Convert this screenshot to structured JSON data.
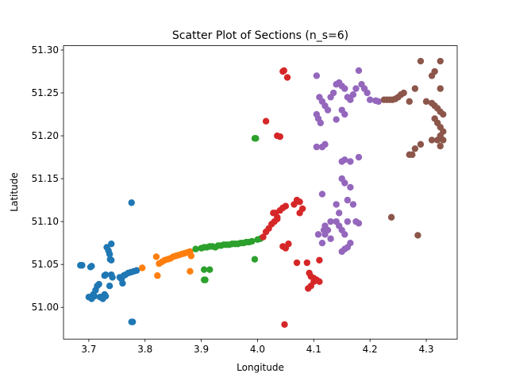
{
  "chart_data": {
    "type": "scatter",
    "title": "Scatter Plot of Sections (n_s=6)",
    "xlabel": "Longitude",
    "ylabel": "Latitude",
    "xlim": [
      3.655,
      4.355
    ],
    "ylim": [
      50.963,
      51.305
    ],
    "xticks": [
      "3.7",
      "3.8",
      "3.9",
      "4.0",
      "4.1",
      "4.2",
      "4.3"
    ],
    "xtick_values": [
      3.7,
      3.8,
      3.9,
      4.0,
      4.1,
      4.2,
      4.3
    ],
    "yticks": [
      "51.00",
      "51.05",
      "51.10",
      "51.15",
      "51.20",
      "51.25",
      "51.30"
    ],
    "ytick_values": [
      51.0,
      51.05,
      51.1,
      51.15,
      51.2,
      51.25,
      51.3
    ],
    "grid": false,
    "legend": "none",
    "series": [
      {
        "color": "#1f77b4",
        "points": [
          [
            3.685,
            51.049
          ],
          [
            3.688,
            51.049
          ],
          [
            3.703,
            51.047
          ],
          [
            3.705,
            51.048
          ],
          [
            3.7,
            51.012
          ],
          [
            3.705,
            51.01
          ],
          [
            3.708,
            51.015
          ],
          [
            3.712,
            51.02
          ],
          [
            3.715,
            51.025
          ],
          [
            3.718,
            51.027
          ],
          [
            3.71,
            51.013
          ],
          [
            3.72,
            51.012
          ],
          [
            3.725,
            51.01
          ],
          [
            3.728,
            51.015
          ],
          [
            3.73,
            51.013
          ],
          [
            3.728,
            51.037
          ],
          [
            3.73,
            51.038
          ],
          [
            3.732,
            51.07
          ],
          [
            3.735,
            51.066
          ],
          [
            3.737,
            51.062
          ],
          [
            3.74,
            51.074
          ],
          [
            3.74,
            51.038
          ],
          [
            3.742,
            51.035
          ],
          [
            3.738,
            51.056
          ],
          [
            3.74,
            51.055
          ],
          [
            3.737,
            51.025
          ],
          [
            3.755,
            51.035
          ],
          [
            3.758,
            51.033
          ],
          [
            3.76,
            51.028
          ],
          [
            3.762,
            51.037
          ],
          [
            3.765,
            51.038
          ],
          [
            3.77,
            51.04
          ],
          [
            3.775,
            51.041
          ],
          [
            3.78,
            51.042
          ],
          [
            3.785,
            51.043
          ],
          [
            3.776,
            51.122
          ],
          [
            3.776,
            50.983
          ],
          [
            3.778,
            50.983
          ]
        ]
      },
      {
        "color": "#ff7f0e",
        "points": [
          [
            3.795,
            51.046
          ],
          [
            3.82,
            51.059
          ],
          [
            3.822,
            51.037
          ],
          [
            3.825,
            51.051
          ],
          [
            3.83,
            51.053
          ],
          [
            3.835,
            51.055
          ],
          [
            3.84,
            51.056
          ],
          [
            3.845,
            51.057
          ],
          [
            3.85,
            51.059
          ],
          [
            3.855,
            51.06
          ],
          [
            3.86,
            51.061
          ],
          [
            3.865,
            51.062
          ],
          [
            3.87,
            51.063
          ],
          [
            3.875,
            51.064
          ],
          [
            3.88,
            51.065
          ],
          [
            3.882,
            51.06
          ],
          [
            3.88,
            51.042
          ]
        ]
      },
      {
        "color": "#2ca02c",
        "points": [
          [
            3.89,
            51.068
          ],
          [
            3.9,
            51.069
          ],
          [
            3.905,
            51.07
          ],
          [
            3.91,
            51.07
          ],
          [
            3.915,
            51.071
          ],
          [
            3.92,
            51.071
          ],
          [
            3.925,
            51.07
          ],
          [
            3.93,
            51.072
          ],
          [
            3.935,
            51.072
          ],
          [
            3.94,
            51.073
          ],
          [
            3.945,
            51.073
          ],
          [
            3.95,
            51.073
          ],
          [
            3.955,
            51.074
          ],
          [
            3.96,
            51.074
          ],
          [
            3.965,
            51.074
          ],
          [
            3.97,
            51.075
          ],
          [
            3.975,
            51.075
          ],
          [
            3.98,
            51.076
          ],
          [
            3.985,
            51.076
          ],
          [
            3.99,
            51.077
          ],
          [
            3.905,
            51.044
          ],
          [
            3.915,
            51.044
          ],
          [
            3.905,
            51.032
          ],
          [
            3.907,
            51.032
          ],
          [
            3.995,
            51.056
          ],
          [
            3.995,
            51.197
          ],
          [
            3.997,
            51.197
          ],
          [
            4.0,
            51.079
          ],
          [
            4.005,
            51.08
          ]
        ]
      },
      {
        "color": "#d62728",
        "points": [
          [
            4.015,
            51.217
          ],
          [
            4.035,
            51.2
          ],
          [
            4.04,
            51.199
          ],
          [
            4.045,
            51.275
          ],
          [
            4.047,
            51.276
          ],
          [
            4.053,
            51.268
          ],
          [
            4.01,
            51.082
          ],
          [
            4.015,
            51.088
          ],
          [
            4.02,
            51.092
          ],
          [
            4.025,
            51.097
          ],
          [
            4.03,
            51.1
          ],
          [
            4.035,
            51.105
          ],
          [
            4.028,
            51.11
          ],
          [
            4.032,
            51.11
          ],
          [
            4.035,
            51.103
          ],
          [
            4.04,
            51.113
          ],
          [
            4.045,
            51.116
          ],
          [
            4.05,
            51.118
          ],
          [
            4.065,
            51.12
          ],
          [
            4.07,
            51.125
          ],
          [
            4.075,
            51.123
          ],
          [
            4.075,
            51.11
          ],
          [
            4.08,
            51.115
          ],
          [
            4.045,
            51.071
          ],
          [
            4.05,
            51.069
          ],
          [
            4.055,
            51.074
          ],
          [
            4.07,
            51.052
          ],
          [
            4.088,
            51.052
          ],
          [
            4.092,
            51.04
          ],
          [
            4.095,
            51.036
          ],
          [
            4.1,
            51.034
          ],
          [
            4.09,
            51.022
          ],
          [
            4.095,
            51.025
          ],
          [
            4.1,
            51.03
          ],
          [
            4.105,
            51.032
          ],
          [
            4.11,
            51.03
          ],
          [
            4.11,
            51.055
          ],
          [
            4.048,
            50.98
          ]
        ]
      },
      {
        "color": "#9467bd",
        "points": [
          [
            4.105,
            51.27
          ],
          [
            4.11,
            51.245
          ],
          [
            4.115,
            51.24
          ],
          [
            4.12,
            51.235
          ],
          [
            4.105,
            51.225
          ],
          [
            4.108,
            51.22
          ],
          [
            4.112,
            51.215
          ],
          [
            4.105,
            51.187
          ],
          [
            4.115,
            51.187
          ],
          [
            4.12,
            51.19
          ],
          [
            4.125,
            51.23
          ],
          [
            4.13,
            51.245
          ],
          [
            4.135,
            51.25
          ],
          [
            4.14,
            51.26
          ],
          [
            4.145,
            51.262
          ],
          [
            4.15,
            51.258
          ],
          [
            4.155,
            51.255
          ],
          [
            4.16,
            51.245
          ],
          [
            4.165,
            51.242
          ],
          [
            4.17,
            51.248
          ],
          [
            4.175,
            51.255
          ],
          [
            4.18,
            51.276
          ],
          [
            4.185,
            51.26
          ],
          [
            4.19,
            51.255
          ],
          [
            4.195,
            51.25
          ],
          [
            4.2,
            51.242
          ],
          [
            4.21,
            51.241
          ],
          [
            4.215,
            51.24
          ],
          [
            4.15,
            51.23
          ],
          [
            4.155,
            51.225
          ],
          [
            4.14,
            51.219
          ],
          [
            4.15,
            51.17
          ],
          [
            4.155,
            51.172
          ],
          [
            4.165,
            51.17
          ],
          [
            4.18,
            51.175
          ],
          [
            4.15,
            51.15
          ],
          [
            4.155,
            51.145
          ],
          [
            4.165,
            51.14
          ],
          [
            4.16,
            51.125
          ],
          [
            4.17,
            51.12
          ],
          [
            4.14,
            51.12
          ],
          [
            4.145,
            51.11
          ],
          [
            4.14,
            51.1
          ],
          [
            4.145,
            51.095
          ],
          [
            4.15,
            51.09
          ],
          [
            4.155,
            51.085
          ],
          [
            4.16,
            51.1
          ],
          [
            4.13,
            51.1
          ],
          [
            4.125,
            51.09
          ],
          [
            4.12,
            51.085
          ],
          [
            4.115,
            51.075
          ],
          [
            4.118,
            51.09
          ],
          [
            4.12,
            51.095
          ],
          [
            4.13,
            51.08
          ],
          [
            4.15,
            51.065
          ],
          [
            4.155,
            51.068
          ],
          [
            4.16,
            51.07
          ],
          [
            4.165,
            51.075
          ],
          [
            4.175,
            51.1
          ],
          [
            4.18,
            51.098
          ],
          [
            4.115,
            51.132
          ],
          [
            4.108,
            51.085
          ]
        ]
      },
      {
        "color": "#8c564b",
        "points": [
          [
            4.225,
            51.242
          ],
          [
            4.23,
            51.242
          ],
          [
            4.235,
            51.242
          ],
          [
            4.24,
            51.242
          ],
          [
            4.245,
            51.243
          ],
          [
            4.25,
            51.245
          ],
          [
            4.255,
            51.248
          ],
          [
            4.26,
            51.25
          ],
          [
            4.27,
            51.24
          ],
          [
            4.28,
            51.255
          ],
          [
            4.29,
            51.287
          ],
          [
            4.31,
            51.27
          ],
          [
            4.315,
            51.275
          ],
          [
            4.325,
            51.287
          ],
          [
            4.325,
            51.255
          ],
          [
            4.3,
            51.24
          ],
          [
            4.31,
            51.238
          ],
          [
            4.315,
            51.235
          ],
          [
            4.32,
            51.232
          ],
          [
            4.325,
            51.228
          ],
          [
            4.33,
            51.225
          ],
          [
            4.315,
            51.22
          ],
          [
            4.32,
            51.215
          ],
          [
            4.325,
            51.21
          ],
          [
            4.33,
            51.205
          ],
          [
            4.325,
            51.2
          ],
          [
            4.32,
            51.195
          ],
          [
            4.31,
            51.195
          ],
          [
            4.325,
            51.188
          ],
          [
            4.33,
            51.195
          ],
          [
            4.28,
            51.185
          ],
          [
            4.29,
            51.19
          ],
          [
            4.27,
            51.178
          ],
          [
            4.275,
            51.178
          ],
          [
            4.238,
            51.105
          ],
          [
            4.285,
            51.084
          ]
        ]
      }
    ]
  }
}
